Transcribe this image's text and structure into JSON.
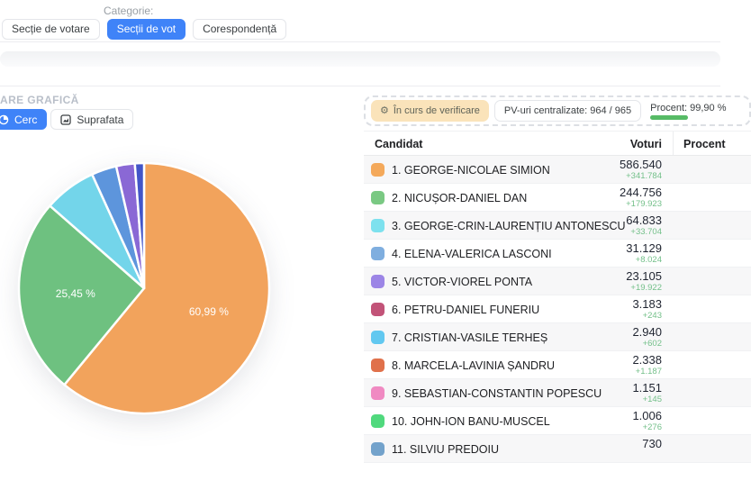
{
  "filters": {
    "label": "Categorie:",
    "buttons": [
      {
        "label": "Secție de votare",
        "active": false
      },
      {
        "label": "Secții de vot",
        "active": true
      },
      {
        "label": "Corespondență",
        "active": false
      }
    ]
  },
  "section": {
    "title": "ARE GRAFICĂ",
    "view_toggle": [
      {
        "label": "Cerc",
        "active": true,
        "icon": "pie-chart-icon"
      },
      {
        "label": "Suprafata",
        "active": false,
        "icon": "area-chart-icon"
      }
    ]
  },
  "status": {
    "verifying_label": "În curs de verificare",
    "pv_label": "PV-uri centralizate: 964 / 965",
    "procent_label": "Procent: 99,90 %",
    "progress_pct": 99.9,
    "progress_color": "#57bb66"
  },
  "table": {
    "columns": [
      "Candidat",
      "Voturi",
      "Procent"
    ],
    "rows": [
      {
        "color": "#f4a95b",
        "name": "1. GEORGE-NICOLAE SIMION",
        "votes": "586.540",
        "delta": "+341.784"
      },
      {
        "color": "#7ac983",
        "name": "2. NICUȘOR-DANIEL DAN",
        "votes": "244.756",
        "delta": "+179.923"
      },
      {
        "color": "#7de1ee",
        "name": "3. GEORGE-CRIN-LAURENȚIU ANTONESCU",
        "votes": "64.833",
        "delta": "+33.704"
      },
      {
        "color": "#7faedf",
        "name": "4. ELENA-VALERICA LASCONI",
        "votes": "31.129",
        "delta": "+8.024"
      },
      {
        "color": "#9c85e6",
        "name": "5. VICTOR-VIOREL PONTA",
        "votes": "23.105",
        "delta": "+19.922"
      },
      {
        "color": "#c25378",
        "name": "6. PETRU-DANIEL FUNERIU",
        "votes": "3.183",
        "delta": "+243"
      },
      {
        "color": "#62c8f0",
        "name": "7. CRISTIAN-VASILE TERHEȘ",
        "votes": "2.940",
        "delta": "+602"
      },
      {
        "color": "#e0714b",
        "name": "8. MARCELA-LAVINIA ȘANDRU",
        "votes": "2.338",
        "delta": "+1.187"
      },
      {
        "color": "#f08ac2",
        "name": "9. SEBASTIAN-CONSTANTIN POPESCU",
        "votes": "1.151",
        "delta": "+145"
      },
      {
        "color": "#50d97d",
        "name": "10. JOHN-ION BANU-MUSCEL",
        "votes": "1.006",
        "delta": "+276"
      },
      {
        "color": "#73a2cb",
        "name": "11. SILVIU PREDOIU",
        "votes": "730",
        "delta": ""
      }
    ]
  },
  "chart_data": {
    "type": "pie",
    "values": [
      60.99,
      25.45,
      6.74,
      3.24,
      2.4,
      1.18
    ],
    "colors": [
      "#f2a35c",
      "#6ec180",
      "#73d5ea",
      "#5d95dc",
      "#8a68d5",
      "#4355c8"
    ],
    "slice_labels": [
      "60,99 %",
      "25,45 %",
      "",
      "",
      "",
      ""
    ],
    "start_angle_deg": 0,
    "direction": "clockwise",
    "separator_color": "#ffffff",
    "label_color": "#ffffff"
  }
}
